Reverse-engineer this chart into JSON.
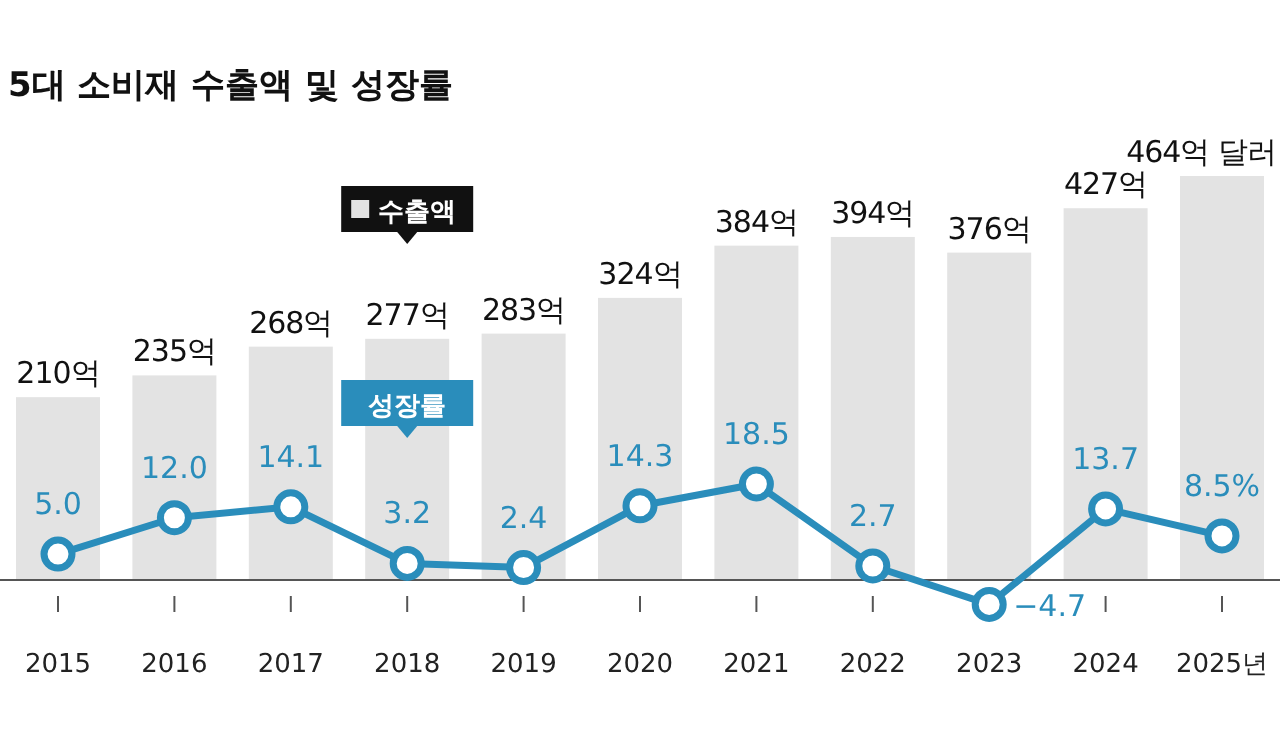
{
  "chart_data": {
    "type": "bar",
    "title": "5대 소비재 수출액 및 성장률",
    "categories": [
      "2015",
      "2016",
      "2017",
      "2018",
      "2019",
      "2020",
      "2021",
      "2022",
      "2023",
      "2024",
      "2025년"
    ],
    "series": [
      {
        "name": "수출액",
        "color": "#e3e3e3",
        "values": [
          210,
          235,
          268,
          277,
          283,
          324,
          384,
          394,
          376,
          427,
          464
        ],
        "value_labels": [
          "210억",
          "235억",
          "268억",
          "277억",
          "283억",
          "324억",
          "384억",
          "394억",
          "376억",
          "427억",
          "464억 달러"
        ]
      },
      {
        "name": "성장률",
        "type": "line",
        "axis": "y2",
        "color": "#2a8dbb",
        "marker": "circle",
        "values": [
          5.0,
          12.0,
          14.1,
          3.2,
          2.4,
          14.3,
          18.5,
          2.7,
          -4.7,
          13.7,
          8.5
        ],
        "value_labels": [
          "5.0",
          "12.0",
          "14.1",
          "3.2",
          "2.4",
          "14.3",
          "18.5",
          "2.7",
          "−4.7",
          "13.7",
          "8.5%"
        ]
      }
    ],
    "legend": "top left"
  }
}
